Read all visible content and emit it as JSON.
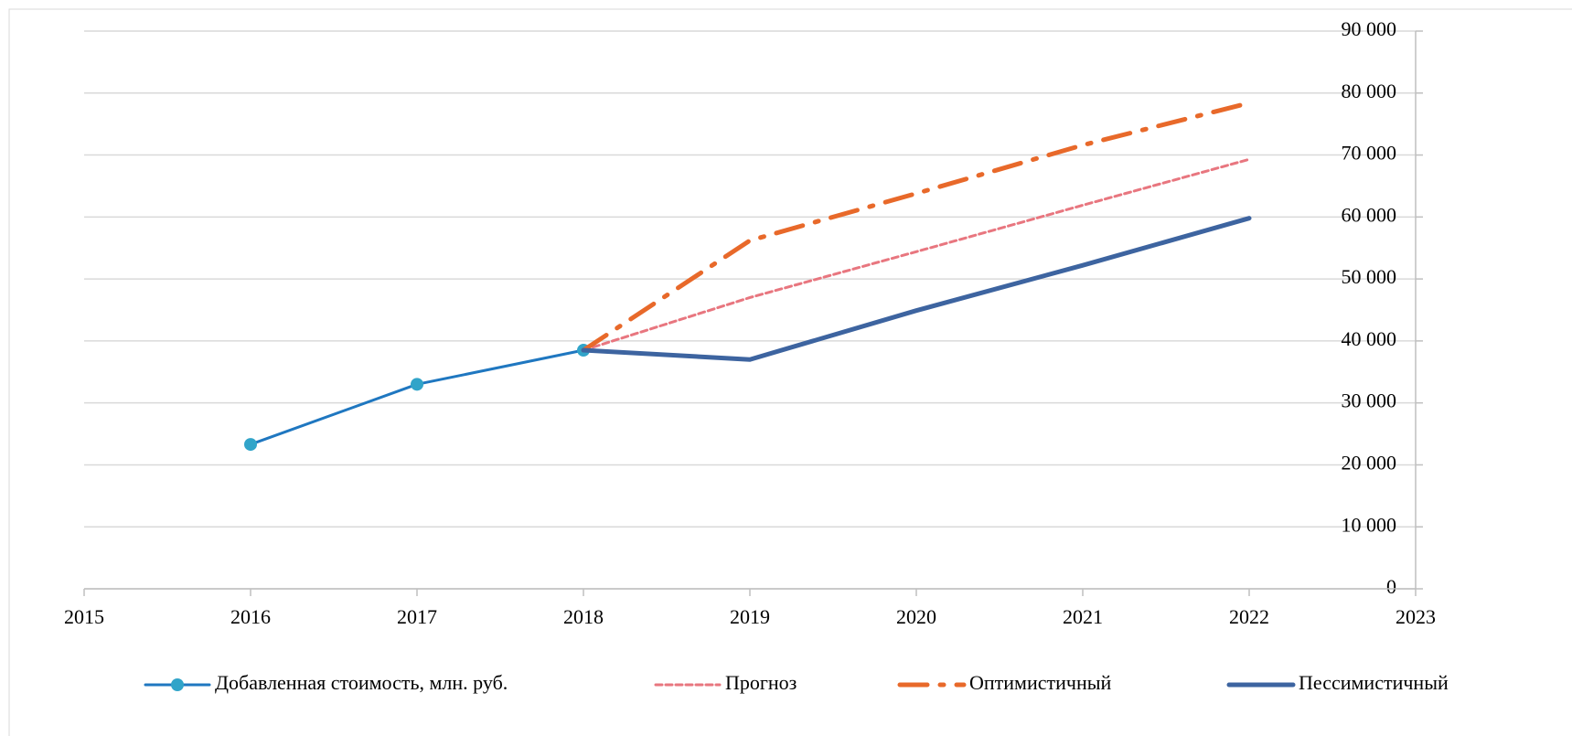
{
  "chart_data": {
    "type": "line",
    "xlim": [
      2015,
      2023
    ],
    "xticks": [
      2015,
      2016,
      2017,
      2018,
      2019,
      2020,
      2021,
      2022,
      2023
    ],
    "ylim": [
      0,
      90000
    ],
    "yticks": [
      0,
      {
        "value": 10000,
        "label": "10 000"
      },
      {
        "value": 20000,
        "label": "20 000"
      },
      {
        "value": 30000,
        "label": "30 000"
      },
      {
        "value": 40000,
        "label": "40 000"
      },
      {
        "value": 50000,
        "label": "50 000"
      },
      {
        "value": 60000,
        "label": "60 000"
      },
      {
        "value": 70000,
        "label": "70 000"
      },
      {
        "value": 80000,
        "label": "80 000"
      },
      {
        "value": 90000,
        "label": "90 000"
      }
    ],
    "y_axis_side": "right",
    "grid": true,
    "legend": "bottom",
    "series": [
      {
        "name": "Добавленная стоимость, млн. руб.",
        "color": "#1f77c0",
        "marker_color": "#31a4c9",
        "style": "solid",
        "x": [
          2016,
          2017,
          2018
        ],
        "values": [
          23300,
          33000,
          38500
        ]
      },
      {
        "name": "Прогноз",
        "color": "#e8767f",
        "style": "dotted",
        "x": [
          2018,
          2019,
          2020,
          2021,
          2022
        ],
        "values": [
          38500,
          47000,
          54400,
          61900,
          69300
        ]
      },
      {
        "name": "Оптимистичный",
        "color": "#e8692a",
        "style": "dashdot",
        "x": [
          2018,
          2019,
          2020,
          2021,
          2022
        ],
        "values": [
          38500,
          56200,
          63800,
          71600,
          78400
        ]
      },
      {
        "name": "Пессимистичный",
        "color": "#3d64a0",
        "style": "solid-thick",
        "x": [
          2018,
          2019,
          2020,
          2021,
          2022
        ],
        "values": [
          38500,
          37000,
          44900,
          52200,
          59800
        ]
      }
    ]
  }
}
